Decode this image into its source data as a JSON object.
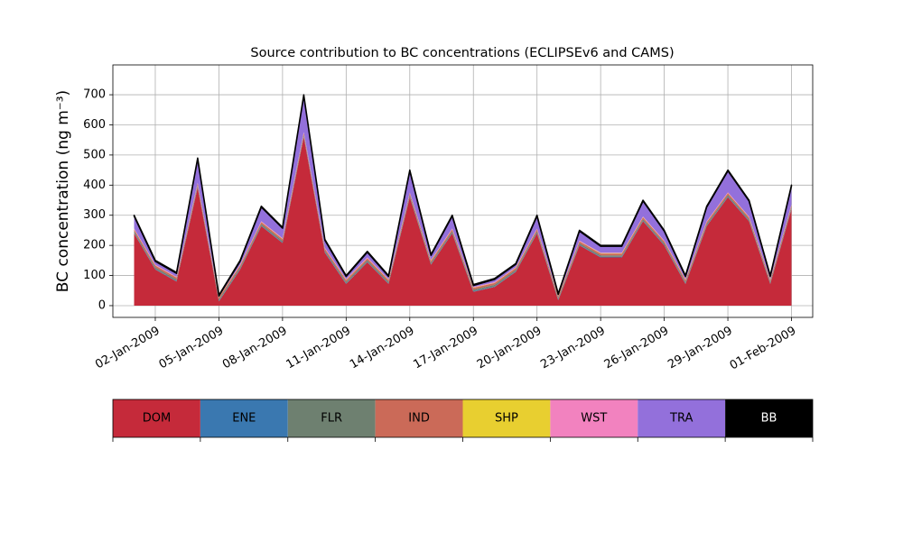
{
  "chart_data": {
    "type": "stacked_area",
    "title": "Source contribution to BC concentrations (ECLIPSEv6 and CAMS)",
    "y_label": "BC concentration (ng m⁻³)",
    "x": [
      "2009-01-01",
      "2009-01-02",
      "2009-01-03",
      "2009-01-04",
      "2009-01-05",
      "2009-01-06",
      "2009-01-07",
      "2009-01-08",
      "2009-01-09",
      "2009-01-10",
      "2009-01-11",
      "2009-01-12",
      "2009-01-13",
      "2009-01-14",
      "2009-01-15",
      "2009-01-16",
      "2009-01-17",
      "2009-01-18",
      "2009-01-19",
      "2009-01-20",
      "2009-01-21",
      "2009-01-22",
      "2009-01-23",
      "2009-01-24",
      "2009-01-25",
      "2009-01-26",
      "2009-01-27",
      "2009-01-28",
      "2009-01-29",
      "2009-01-30",
      "2009-01-31",
      "2009-02-01"
    ],
    "series": [
      {
        "name": "DOM",
        "color": "#c52a3a",
        "values": [
          240,
          120,
          80,
          392,
          14,
          120,
          264,
          208,
          560,
          176,
          72,
          144,
          72,
          360,
          136,
          240,
          46,
          62,
          112,
          240,
          18,
          200,
          160,
          160,
          280,
          200,
          72,
          264,
          360,
          280,
          72,
          320
        ]
      },
      {
        "name": "ENE",
        "color": "#3a78b0",
        "values": [
          2,
          2,
          2,
          2,
          2,
          2,
          2,
          2,
          2,
          2,
          2,
          2,
          2,
          2,
          2,
          2,
          2,
          2,
          2,
          2,
          2,
          2,
          2,
          2,
          2,
          2,
          2,
          2,
          2,
          2,
          2,
          2
        ]
      },
      {
        "name": "FLR",
        "color": "#6e8070",
        "values": [
          5,
          5,
          5,
          5,
          5,
          5,
          5,
          5,
          5,
          5,
          5,
          5,
          5,
          5,
          5,
          5,
          5,
          5,
          5,
          5,
          5,
          5,
          5,
          5,
          5,
          5,
          5,
          5,
          5,
          5,
          5,
          5
        ]
      },
      {
        "name": "IND",
        "color": "#cb6a58",
        "values": [
          6,
          6,
          6,
          6,
          6,
          6,
          6,
          6,
          6,
          6,
          6,
          6,
          6,
          6,
          6,
          6,
          6,
          6,
          6,
          6,
          6,
          6,
          6,
          6,
          6,
          6,
          6,
          6,
          6,
          6,
          6,
          6
        ]
      },
      {
        "name": "SHP",
        "color": "#e8cf30",
        "values": [
          1,
          1,
          1,
          1,
          1,
          1,
          1,
          1,
          1,
          1,
          1,
          1,
          1,
          1,
          1,
          1,
          1,
          1,
          1,
          1,
          1,
          1,
          1,
          1,
          1,
          1,
          1,
          1,
          1,
          1,
          1,
          1
        ]
      },
      {
        "name": "WST",
        "color": "#f282bf",
        "values": [
          2,
          2,
          2,
          2,
          2,
          2,
          2,
          2,
          2,
          2,
          2,
          2,
          2,
          2,
          2,
          2,
          2,
          2,
          2,
          2,
          2,
          2,
          2,
          2,
          2,
          2,
          2,
          2,
          2,
          2,
          2,
          2
        ]
      },
      {
        "name": "TRA",
        "color": "#9370db",
        "values": [
          41,
          11,
          11,
          79,
          2,
          11,
          47,
          33,
          121,
          25,
          9,
          17,
          9,
          71,
          15,
          41,
          5,
          9,
          9,
          41,
          3,
          31,
          21,
          21,
          51,
          31,
          9,
          47,
          71,
          51,
          9,
          61
        ]
      },
      {
        "name": "BB",
        "color": "#000000",
        "values": [
          3,
          3,
          3,
          3,
          3,
          3,
          3,
          3,
          3,
          3,
          3,
          3,
          3,
          3,
          3,
          3,
          3,
          3,
          3,
          3,
          3,
          3,
          3,
          3,
          3,
          3,
          3,
          3,
          3,
          3,
          3,
          3
        ]
      }
    ],
    "xlim": [
      "2008-12-31",
      "2009-02-02"
    ],
    "xticks": [
      {
        "value": "2009-01-02",
        "label": "02-Jan-2009"
      },
      {
        "value": "2009-01-05",
        "label": "05-Jan-2009"
      },
      {
        "value": "2009-01-08",
        "label": "08-Jan-2009"
      },
      {
        "value": "2009-01-11",
        "label": "11-Jan-2009"
      },
      {
        "value": "2009-01-14",
        "label": "14-Jan-2009"
      },
      {
        "value": "2009-01-17",
        "label": "17-Jan-2009"
      },
      {
        "value": "2009-01-20",
        "label": "20-Jan-2009"
      },
      {
        "value": "2009-01-23",
        "label": "23-Jan-2009"
      },
      {
        "value": "2009-01-26",
        "label": "26-Jan-2009"
      },
      {
        "value": "2009-01-29",
        "label": "29-Jan-2009"
      },
      {
        "value": "2009-02-01",
        "label": "01-Feb-2009"
      }
    ],
    "ylim": [
      -39,
      799
    ],
    "yticks": [
      0,
      100,
      200,
      300,
      400,
      500,
      600,
      700
    ],
    "grid": true,
    "legend": "bottom"
  }
}
